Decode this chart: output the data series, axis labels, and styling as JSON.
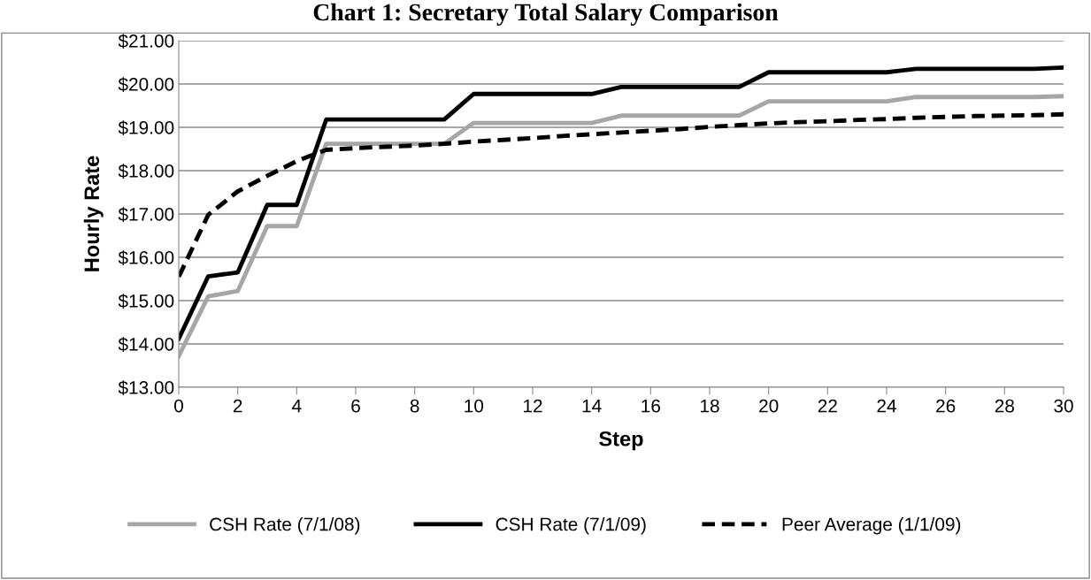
{
  "chart_data": {
    "type": "line",
    "title": "Chart 1: Secretary Total Salary Comparison",
    "xlabel": "Step",
    "ylabel": "Hourly Rate",
    "x": [
      0,
      1,
      2,
      3,
      4,
      5,
      6,
      7,
      8,
      9,
      10,
      11,
      12,
      13,
      14,
      15,
      16,
      17,
      18,
      19,
      20,
      21,
      22,
      23,
      24,
      25,
      26,
      27,
      28,
      29,
      30
    ],
    "series": [
      {
        "name": "CSH Rate (7/1/08)",
        "color": "#a6a6a6",
        "line_style": "solid",
        "values": [
          13.72,
          15.1,
          15.22,
          16.72,
          16.72,
          18.62,
          18.62,
          18.62,
          18.62,
          18.62,
          19.1,
          19.1,
          19.1,
          19.1,
          19.1,
          19.27,
          19.27,
          19.27,
          19.27,
          19.27,
          19.6,
          19.6,
          19.6,
          19.6,
          19.6,
          19.7,
          19.7,
          19.7,
          19.7,
          19.7,
          19.72
        ]
      },
      {
        "name": "CSH Rate (7/1/09)",
        "color": "#000000",
        "line_style": "solid",
        "values": [
          14.12,
          15.56,
          15.65,
          17.21,
          17.21,
          19.18,
          19.18,
          19.18,
          19.18,
          19.18,
          19.77,
          19.77,
          19.77,
          19.77,
          19.77,
          19.93,
          19.93,
          19.93,
          19.93,
          19.93,
          20.27,
          20.27,
          20.27,
          20.27,
          20.27,
          20.35,
          20.35,
          20.35,
          20.35,
          20.35,
          20.38
        ]
      },
      {
        "name": "Peer Average (1/1/09)",
        "color": "#000000",
        "line_style": "dashed",
        "values": [
          15.55,
          16.98,
          17.52,
          17.88,
          18.22,
          18.48,
          18.52,
          18.55,
          18.58,
          18.62,
          18.67,
          18.71,
          18.75,
          18.8,
          18.84,
          18.88,
          18.92,
          18.96,
          19.01,
          19.05,
          19.09,
          19.12,
          19.14,
          19.17,
          19.19,
          19.22,
          19.24,
          19.26,
          19.27,
          19.28,
          19.3
        ]
      }
    ],
    "xlim": [
      0,
      30
    ],
    "xticks": [
      0,
      2,
      4,
      6,
      8,
      10,
      12,
      14,
      16,
      18,
      20,
      22,
      24,
      26,
      28,
      30
    ],
    "ylim": [
      13,
      21
    ],
    "yticks": [
      {
        "value": 13,
        "label": "$13.00"
      },
      {
        "value": 14,
        "label": "$14.00"
      },
      {
        "value": 15,
        "label": "$15.00"
      },
      {
        "value": 16,
        "label": "$16.00"
      },
      {
        "value": 17,
        "label": "$17.00"
      },
      {
        "value": 18,
        "label": "$18.00"
      },
      {
        "value": 19,
        "label": "$19.00"
      },
      {
        "value": 20,
        "label": "$20.00"
      },
      {
        "value": 21,
        "label": "$21.00"
      }
    ],
    "grid": "y",
    "legend": "bottom"
  }
}
